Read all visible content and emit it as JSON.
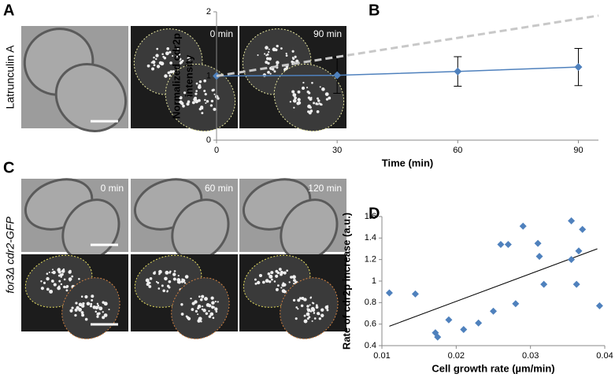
{
  "panels": {
    "A": {
      "letter": "A",
      "side_label": "Latrunculin A",
      "times": [
        "0 min",
        "90 min"
      ]
    },
    "C": {
      "letter": "C",
      "side_label": "for3Δ  cdr2-GFP",
      "times": [
        "0 min",
        "60 min",
        "120 min"
      ]
    }
  },
  "chart_data": [
    {
      "type": "line",
      "panel_label": "B",
      "x_label": "Time (min)",
      "y_label": [
        "Normalized cdr2p",
        "intensity"
      ],
      "x": [
        0,
        30,
        60,
        90
      ],
      "xlim": [
        0,
        95
      ],
      "xticks": [
        0,
        30,
        60,
        90
      ],
      "ylim": [
        0,
        2
      ],
      "yticks": [
        0,
        1,
        2
      ],
      "series": [
        {
          "color": "#4f81bd",
          "values": [
            1.0,
            1.01,
            1.07,
            1.14
          ],
          "errors": [
            0,
            0.28,
            0.23,
            0.29
          ]
        },
        {
          "color": "#c8c8c8",
          "dashed": true,
          "x": [
            0,
            95
          ],
          "values": [
            1.0,
            1.94
          ]
        }
      ]
    },
    {
      "type": "scatter",
      "panel_label": "D",
      "x_label": "Cell growth rate (µm/min)",
      "y_label": "Rate of cdr2p increase (a.u.)",
      "xlim": [
        0.01,
        0.04
      ],
      "xticks": [
        0.01,
        0.02,
        0.03,
        0.04
      ],
      "ylim": [
        0.4,
        1.6
      ],
      "yticks": [
        0.4,
        0.6,
        0.8,
        1,
        1.2,
        1.4,
        1.6
      ],
      "color": "#4f81bd",
      "x": [
        0.011,
        0.0145,
        0.0172,
        0.0175,
        0.019,
        0.021,
        0.023,
        0.025,
        0.026,
        0.027,
        0.028,
        0.029,
        0.031,
        0.0312,
        0.0318,
        0.0355,
        0.0355,
        0.0362,
        0.0365,
        0.037,
        0.0393
      ],
      "values": [
        0.89,
        0.88,
        0.52,
        0.48,
        0.64,
        0.55,
        0.61,
        0.72,
        1.34,
        1.34,
        0.79,
        1.51,
        1.35,
        1.23,
        0.97,
        1.56,
        1.2,
        0.97,
        1.28,
        1.48,
        0.77
      ],
      "trendline": {
        "color": "#000000",
        "x": [
          0.011,
          0.039
        ],
        "values": [
          0.58,
          1.3
        ]
      }
    }
  ]
}
